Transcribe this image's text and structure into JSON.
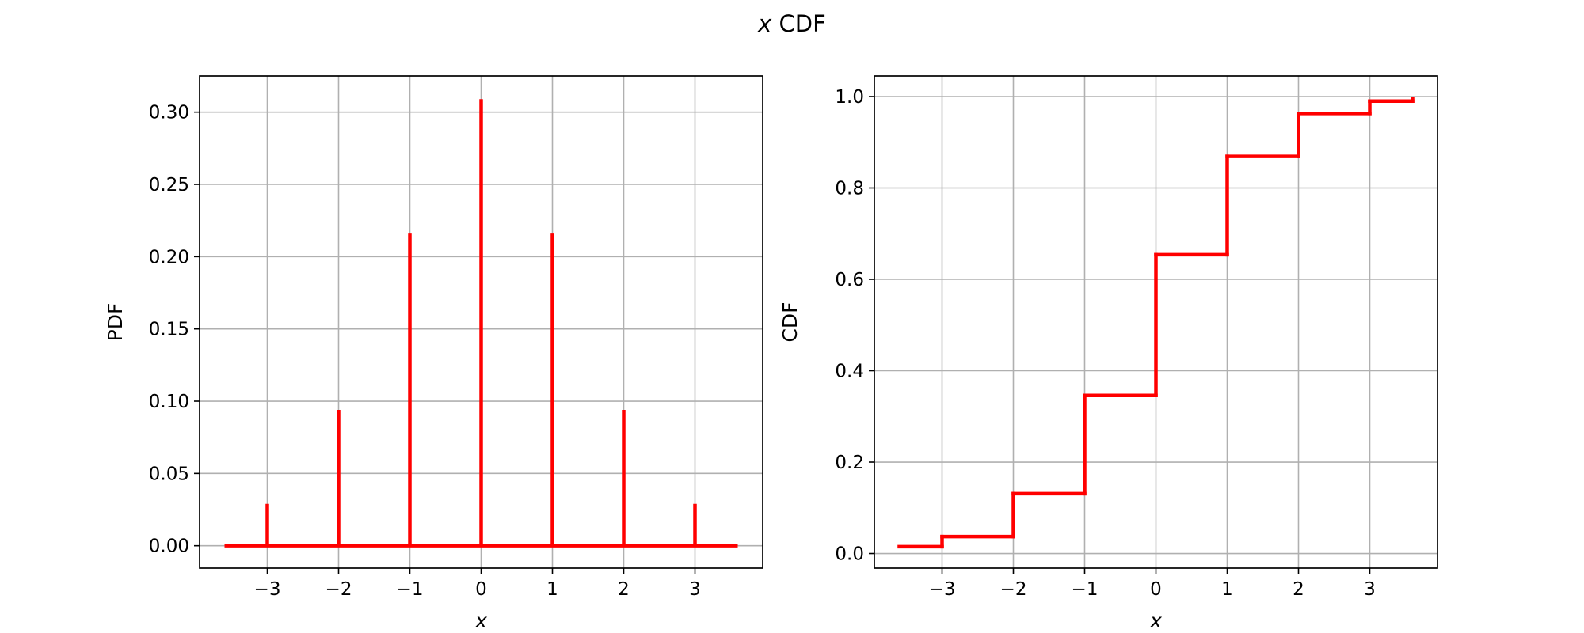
{
  "figure": {
    "suptitle_var": "x",
    "suptitle_text": " CDF"
  },
  "chart_data": [
    {
      "type": "stem",
      "title": "",
      "xlabel": "x",
      "ylabel": "PDF",
      "xlim": [
        -3.95,
        3.95
      ],
      "ylim": [
        -0.0155,
        0.325
      ],
      "grid": true,
      "color": "#ff0000",
      "baseline": {
        "x_start": -3.6,
        "x_end": 3.6,
        "y": 0
      },
      "xticks": [
        -3,
        -2,
        -1,
        0,
        1,
        2,
        3
      ],
      "xtick_labels": [
        "−3",
        "−2",
        "−1",
        "0",
        "1",
        "2",
        "3"
      ],
      "yticks": [
        0.0,
        0.05,
        0.1,
        0.15,
        0.2,
        0.25,
        0.3
      ],
      "ytick_labels": [
        "0.00",
        "0.05",
        "0.10",
        "0.15",
        "0.20",
        "0.25",
        "0.30"
      ],
      "x": [
        -3,
        -2,
        -1,
        0,
        1,
        2,
        3
      ],
      "y": [
        0.029,
        0.094,
        0.216,
        0.309,
        0.216,
        0.094,
        0.029
      ]
    },
    {
      "type": "step",
      "title": "",
      "xlabel": "x",
      "ylabel": "CDF",
      "xlim": [
        -3.95,
        3.95
      ],
      "ylim": [
        -0.032,
        1.045
      ],
      "grid": true,
      "color": "#ff0000",
      "xticks": [
        -3,
        -2,
        -1,
        0,
        1,
        2,
        3
      ],
      "xtick_labels": [
        "−3",
        "−2",
        "−1",
        "0",
        "1",
        "2",
        "3"
      ],
      "yticks": [
        0.0,
        0.2,
        0.4,
        0.6,
        0.8,
        1.0
      ],
      "ytick_labels": [
        "0.0",
        "0.2",
        "0.4",
        "0.6",
        "0.8",
        "1.0"
      ],
      "x": [
        -3.6,
        -3,
        -2,
        -1,
        0,
        1,
        2,
        3,
        3.6
      ],
      "y": [
        0.015,
        0.037,
        0.131,
        0.346,
        0.654,
        0.869,
        0.963,
        0.99,
        0.995
      ]
    }
  ]
}
